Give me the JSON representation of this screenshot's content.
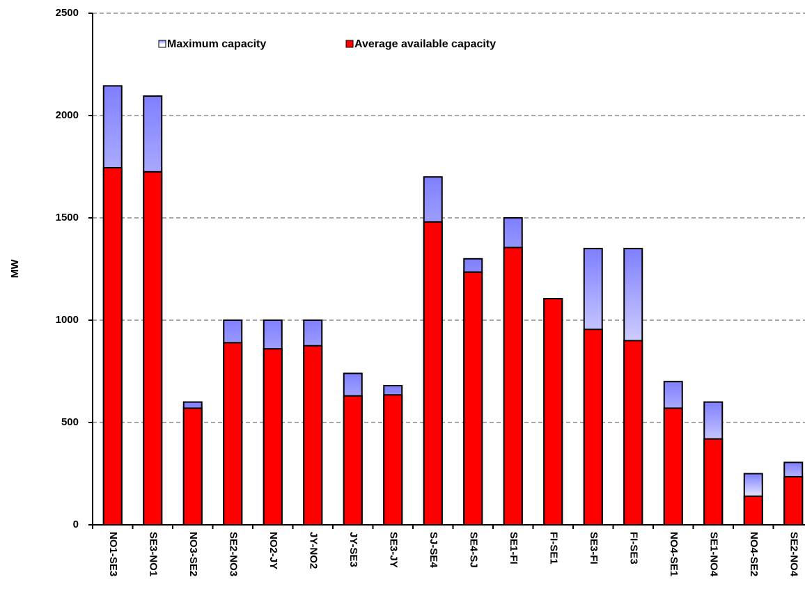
{
  "chart_data": {
    "type": "overlay-bar",
    "y_label": "MW",
    "categories": [
      "NO1-SE3",
      "SE3-NO1",
      "NO3-SE2",
      "SE2-NO3",
      "NO2-JY",
      "JY-NO2",
      "JY-SE3",
      "SE3-JY",
      "SJ-SE4",
      "SE4-SJ",
      "SE1-FI",
      "FI-SE1",
      "SE3-FI",
      "FI-SE3",
      "NO4-SE1",
      "SE1-NO4",
      "NO4-SE2",
      "SE2-NO4"
    ],
    "series": [
      {
        "name": "Maximum capacity",
        "color": "#7f7fff",
        "values": [
          2145,
          2095,
          600,
          1000,
          1000,
          1000,
          740,
          680,
          1700,
          1300,
          1500,
          1105,
          1350,
          1350,
          700,
          600,
          250,
          305
        ]
      },
      {
        "name": "Average available capacity",
        "color": "#ff0000",
        "values": [
          1745,
          1725,
          570,
          890,
          860,
          875,
          630,
          635,
          1480,
          1235,
          1355,
          1105,
          955,
          900,
          570,
          420,
          140,
          235
        ]
      }
    ],
    "ylim": [
      0,
      2500
    ],
    "yticks": [
      0,
      500,
      1000,
      1500,
      2000,
      2500
    ],
    "grid": true
  }
}
